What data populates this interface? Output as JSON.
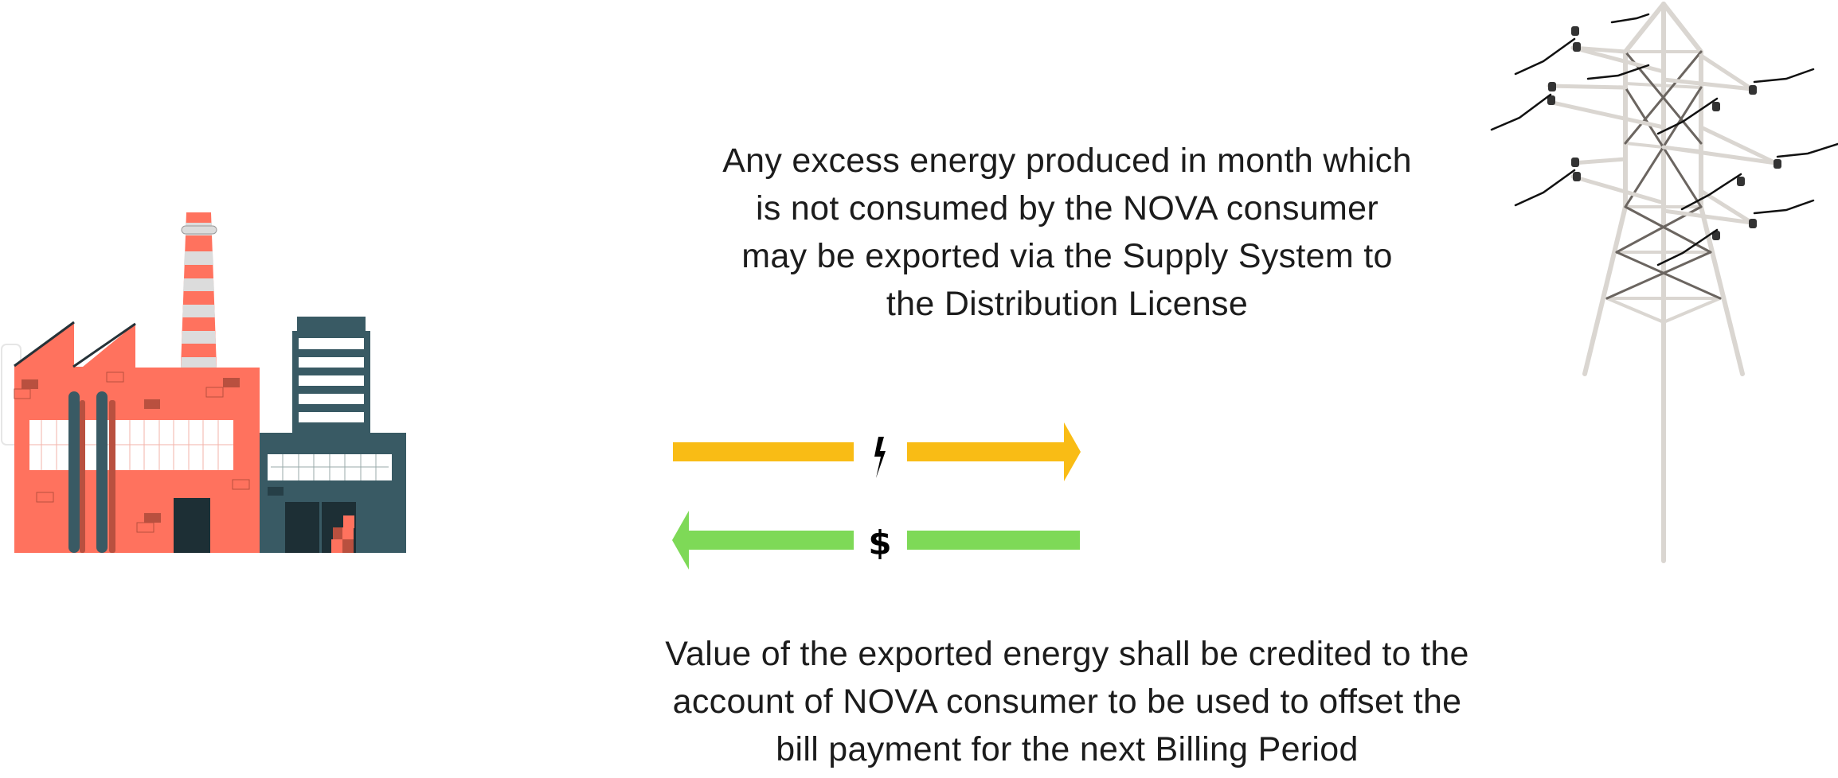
{
  "export_text": {
    "lines": [
      "Any excess energy produced in month which",
      "is not consumed by the NOVA consumer",
      "may be exported via the Supply System to",
      "the Distribution License"
    ]
  },
  "credit_text": {
    "lines": [
      "Value of the exported energy shall be credited to the",
      "account of NOVA consumer to be used to offset the",
      "bill payment for the next Billing Period"
    ]
  },
  "arrows": {
    "energy": {
      "direction": "right",
      "icon": "lightning-bolt-icon",
      "color": "#F9BC15"
    },
    "money": {
      "direction": "left",
      "icon": "dollar-sign-icon",
      "symbol": "$",
      "color": "#7ED957"
    }
  },
  "colors": {
    "factory": "#FF725E",
    "factory_shadow": "#B9503F",
    "building": "#395A64",
    "door": "#1D2F35",
    "tower": "#E3E0DC"
  }
}
